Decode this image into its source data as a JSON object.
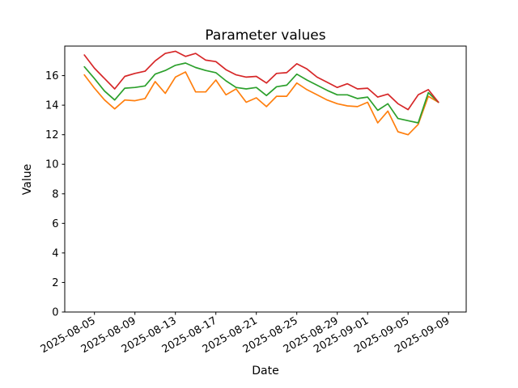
{
  "figure": {
    "title": "Parameter values",
    "xlabel": "Date",
    "ylabel": "Value"
  },
  "chart_data": {
    "type": "line",
    "title": "Parameter values",
    "xlabel": "Date",
    "ylabel": "Value",
    "ylim": [
      0,
      18
    ],
    "xlim": [
      "2025-08-02",
      "2025-09-10"
    ],
    "grid": false,
    "legend": "none",
    "background": "#ffffff",
    "y_ticks": [
      0,
      2,
      4,
      6,
      8,
      10,
      12,
      14,
      16
    ],
    "y_tick_labels": [
      "0",
      "2",
      "4",
      "6",
      "8",
      "10",
      "12",
      "14",
      "16"
    ],
    "x_tick_labels": [
      "2025-08-05",
      "2025-08-09",
      "2025-08-13",
      "2025-08-17",
      "2025-08-21",
      "2025-08-25",
      "2025-08-29",
      "2025-09-01",
      "2025-09-05",
      "2025-09-09"
    ],
    "x": [
      "2025-08-04",
      "2025-08-05",
      "2025-08-06",
      "2025-08-07",
      "2025-08-08",
      "2025-08-09",
      "2025-08-10",
      "2025-08-11",
      "2025-08-12",
      "2025-08-13",
      "2025-08-14",
      "2025-08-15",
      "2025-08-16",
      "2025-08-17",
      "2025-08-18",
      "2025-08-19",
      "2025-08-20",
      "2025-08-21",
      "2025-08-22",
      "2025-08-23",
      "2025-08-24",
      "2025-08-25",
      "2025-08-26",
      "2025-08-27",
      "2025-08-28",
      "2025-08-29",
      "2025-08-30",
      "2025-08-31",
      "2025-09-01",
      "2025-09-02",
      "2025-09-03",
      "2025-09-04",
      "2025-09-05",
      "2025-09-06",
      "2025-09-07",
      "2025-09-08"
    ],
    "series": [
      {
        "name": "orange",
        "color": "#ff7f0e",
        "values": [
          16.05,
          15.15,
          14.35,
          13.75,
          14.35,
          14.3,
          14.45,
          15.6,
          14.8,
          15.9,
          16.25,
          14.9,
          14.9,
          15.7,
          14.7,
          15.1,
          14.2,
          14.5,
          13.9,
          14.6,
          14.6,
          15.5,
          15.05,
          14.7,
          14.35,
          14.1,
          13.95,
          13.9,
          14.2,
          12.8,
          13.6,
          12.2,
          12.0,
          12.7,
          14.6,
          14.2
        ]
      },
      {
        "name": "green",
        "color": "#2ca02c",
        "values": [
          16.6,
          15.8,
          14.95,
          14.35,
          15.15,
          15.2,
          15.3,
          16.1,
          16.35,
          16.7,
          16.85,
          16.55,
          16.35,
          16.2,
          15.65,
          15.2,
          15.1,
          15.2,
          14.65,
          15.25,
          15.35,
          16.1,
          15.7,
          15.35,
          15.0,
          14.7,
          14.7,
          14.45,
          14.55,
          13.65,
          14.1,
          13.1,
          12.95,
          12.8,
          14.85,
          14.2
        ]
      },
      {
        "name": "red",
        "color": "#d62728",
        "values": [
          17.4,
          16.5,
          15.8,
          15.1,
          15.95,
          16.15,
          16.3,
          17.0,
          17.5,
          17.65,
          17.3,
          17.5,
          17.05,
          16.95,
          16.4,
          16.05,
          15.9,
          15.95,
          15.5,
          16.15,
          16.2,
          16.8,
          16.45,
          15.9,
          15.55,
          15.2,
          15.45,
          15.1,
          15.15,
          14.55,
          14.75,
          14.1,
          13.7,
          14.7,
          15.05,
          14.2
        ]
      }
    ]
  }
}
